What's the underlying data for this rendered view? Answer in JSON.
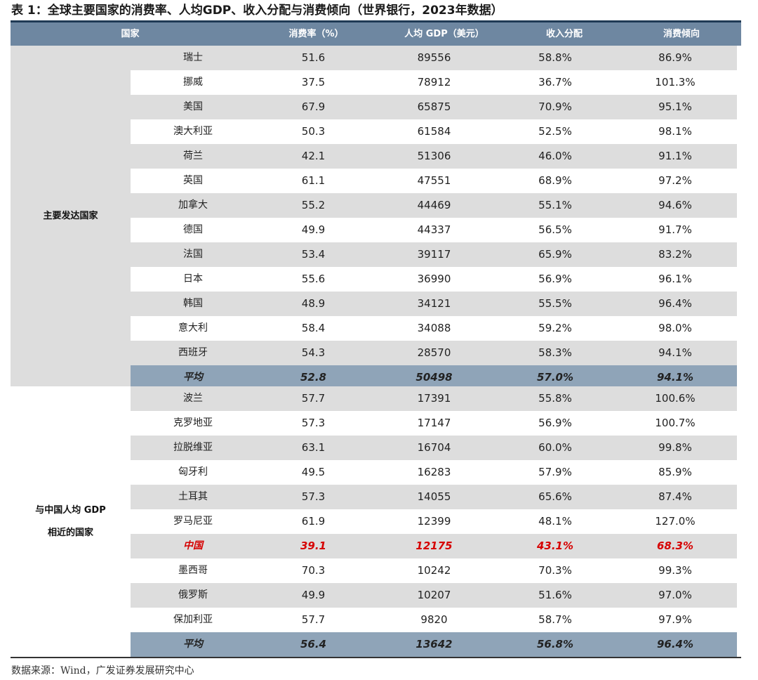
{
  "title": "表 1：全球主要国家的消费率、人均GDP、收入分配与消费倾向（世界银行，2023年数据）",
  "header": {
    "country": "国家",
    "consumption_rate": "消费率（%）",
    "gdp_per_capita": "人均 GDP（美元）",
    "income_distribution": "收入分配",
    "consumption_propensity": "消费倾向"
  },
  "groups": [
    {
      "name_lines": [
        "主要发达国家"
      ],
      "rows": [
        {
          "country": "瑞士",
          "rate": "51.6",
          "gdp": "89556",
          "income": "58.8%",
          "propensity": "86.9%"
        },
        {
          "country": "挪威",
          "rate": "37.5",
          "gdp": "78912",
          "income": "36.7%",
          "propensity": "101.3%"
        },
        {
          "country": "美国",
          "rate": "67.9",
          "gdp": "65875",
          "income": "70.9%",
          "propensity": "95.1%"
        },
        {
          "country": "澳大利亚",
          "rate": "50.3",
          "gdp": "61584",
          "income": "52.5%",
          "propensity": "98.1%"
        },
        {
          "country": "荷兰",
          "rate": "42.1",
          "gdp": "51306",
          "income": "46.0%",
          "propensity": "91.1%"
        },
        {
          "country": "英国",
          "rate": "61.1",
          "gdp": "47551",
          "income": "68.9%",
          "propensity": "97.2%"
        },
        {
          "country": "加拿大",
          "rate": "55.2",
          "gdp": "44469",
          "income": "55.1%",
          "propensity": "94.6%"
        },
        {
          "country": "德国",
          "rate": "49.9",
          "gdp": "44337",
          "income": "56.5%",
          "propensity": "91.7%"
        },
        {
          "country": "法国",
          "rate": "53.4",
          "gdp": "39117",
          "income": "65.9%",
          "propensity": "83.2%"
        },
        {
          "country": "日本",
          "rate": "55.6",
          "gdp": "36990",
          "income": "56.9%",
          "propensity": "96.1%"
        },
        {
          "country": "韩国",
          "rate": "48.9",
          "gdp": "34121",
          "income": "55.5%",
          "propensity": "96.4%"
        },
        {
          "country": "意大利",
          "rate": "58.4",
          "gdp": "34088",
          "income": "59.2%",
          "propensity": "98.0%"
        },
        {
          "country": "西班牙",
          "rate": "54.3",
          "gdp": "28570",
          "income": "58.3%",
          "propensity": "94.1%"
        }
      ],
      "average": {
        "country": "平均",
        "rate": "52.8",
        "gdp": "50498",
        "income": "57.0%",
        "propensity": "94.1%"
      }
    },
    {
      "name_lines": [
        "与中国人均 GDP",
        "相近的国家"
      ],
      "rows": [
        {
          "country": "波兰",
          "rate": "57.7",
          "gdp": "17391",
          "income": "55.8%",
          "propensity": "100.6%"
        },
        {
          "country": "克罗地亚",
          "rate": "57.3",
          "gdp": "17147",
          "income": "56.9%",
          "propensity": "100.7%"
        },
        {
          "country": "拉脱维亚",
          "rate": "63.1",
          "gdp": "16704",
          "income": "60.0%",
          "propensity": "99.8%"
        },
        {
          "country": "匈牙利",
          "rate": "49.5",
          "gdp": "16283",
          "income": "57.9%",
          "propensity": "85.9%"
        },
        {
          "country": "土耳其",
          "rate": "57.3",
          "gdp": "14055",
          "income": "65.6%",
          "propensity": "87.4%"
        },
        {
          "country": "罗马尼亚",
          "rate": "61.9",
          "gdp": "12399",
          "income": "48.1%",
          "propensity": "127.0%"
        },
        {
          "country": "中国",
          "rate": "39.1",
          "gdp": "12175",
          "income": "43.1%",
          "propensity": "68.3%",
          "highlight": true
        },
        {
          "country": "墨西哥",
          "rate": "70.3",
          "gdp": "10242",
          "income": "70.3%",
          "propensity": "99.3%"
        },
        {
          "country": "俄罗斯",
          "rate": "49.9",
          "gdp": "10207",
          "income": "51.6%",
          "propensity": "97.0%"
        },
        {
          "country": "保加利亚",
          "rate": "57.7",
          "gdp": "9820",
          "income": "58.7%",
          "propensity": "97.9%"
        }
      ],
      "average": {
        "country": "平均",
        "rate": "56.4",
        "gdp": "13642",
        "income": "56.8%",
        "propensity": "96.4%"
      }
    }
  ],
  "source": "数据来源：Wind，广发证券发展研究中心",
  "colors": {
    "header_bg": "#6e87a1",
    "average_bg": "#8fa4b8",
    "stripe_bg": "#dddddd",
    "highlight_text": "#d60000"
  }
}
